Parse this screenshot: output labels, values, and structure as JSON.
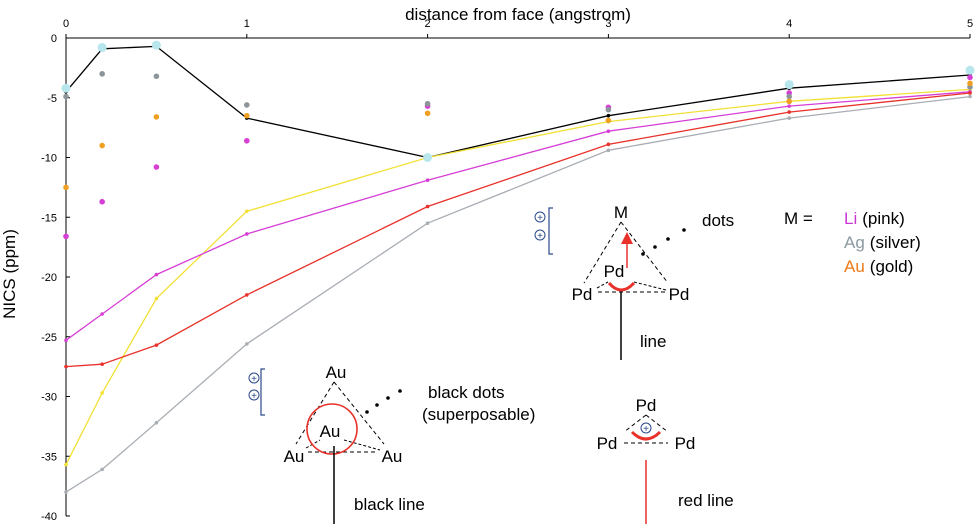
{
  "chart_data": {
    "type": "scatter",
    "xlabel": "distance from face (angstrom)",
    "ylabel": "NICS (ppm)",
    "xlim": [
      0,
      5
    ],
    "ylim": [
      -40,
      0
    ],
    "x_ticks": [
      "0",
      "1",
      "2",
      "3",
      "4",
      "5"
    ],
    "y_ticks": [
      "0",
      "-5",
      "-10",
      "-15",
      "-20",
      "-25",
      "-30",
      "-35",
      "-40"
    ],
    "series": [
      {
        "key": "black_line",
        "style": "line",
        "color": "#000000",
        "points": [
          [
            0,
            -4.5
          ],
          [
            0.2,
            -0.9
          ],
          [
            0.5,
            -0.7
          ],
          [
            1,
            -6.7
          ],
          [
            2,
            -10.0
          ],
          [
            3,
            -6.5
          ],
          [
            4,
            -4.2
          ],
          [
            5,
            -3.1
          ]
        ]
      },
      {
        "key": "yellow_line",
        "style": "line",
        "color": "#f2e034",
        "points": [
          [
            0,
            -35.7
          ],
          [
            0.2,
            -29.7
          ],
          [
            0.5,
            -21.8
          ],
          [
            1,
            -14.5
          ],
          [
            2,
            -10.0
          ],
          [
            3,
            -7.0
          ],
          [
            4,
            -5.3
          ],
          [
            5,
            -4.3
          ]
        ]
      },
      {
        "key": "pink_line",
        "style": "line",
        "color": "#d63fd6",
        "points": [
          [
            0,
            -25.3
          ],
          [
            0.2,
            -23.1
          ],
          [
            0.5,
            -19.8
          ],
          [
            1,
            -16.4
          ],
          [
            2,
            -11.9
          ],
          [
            3,
            -7.8
          ],
          [
            4,
            -5.7
          ],
          [
            5,
            -4.5
          ]
        ]
      },
      {
        "key": "red_line",
        "style": "line",
        "color": "#e8312a",
        "points": [
          [
            0,
            -27.5
          ],
          [
            0.2,
            -27.3
          ],
          [
            0.5,
            -25.7
          ],
          [
            1,
            -21.5
          ],
          [
            2,
            -14.1
          ],
          [
            3,
            -8.9
          ],
          [
            4,
            -6.2
          ],
          [
            5,
            -4.6
          ]
        ]
      },
      {
        "key": "gray_line",
        "style": "line",
        "color": "#a9aeb4",
        "points": [
          [
            0,
            -38.0
          ],
          [
            0.2,
            -36.1
          ],
          [
            0.5,
            -32.2
          ],
          [
            1,
            -25.6
          ],
          [
            2,
            -15.5
          ],
          [
            3,
            -9.4
          ],
          [
            4,
            -6.7
          ],
          [
            5,
            -4.9
          ]
        ]
      },
      {
        "key": "light_blue_dots",
        "style": "dots",
        "color": "#b7e6ec",
        "points": [
          [
            0,
            -4.2
          ],
          [
            0.2,
            -0.8
          ],
          [
            0.5,
            -0.6
          ],
          [
            2,
            -10.0
          ],
          [
            4,
            -3.9
          ],
          [
            5,
            -2.7
          ]
        ]
      },
      {
        "key": "pink_dots",
        "style": "dots",
        "color": "#d63fd6",
        "points": [
          [
            0,
            -16.6
          ],
          [
            0.2,
            -13.7
          ],
          [
            0.5,
            -10.8
          ],
          [
            1,
            -8.6
          ],
          [
            2,
            -5.7
          ],
          [
            3,
            -5.8
          ],
          [
            4,
            -4.6
          ],
          [
            5,
            -3.3
          ]
        ]
      },
      {
        "key": "gray_dots",
        "style": "dots",
        "color": "#8c9599",
        "points": [
          [
            0,
            -4.9
          ],
          [
            0.2,
            -3.0
          ],
          [
            0.5,
            -3.2
          ],
          [
            1,
            -5.6
          ],
          [
            2,
            -5.5
          ],
          [
            3,
            -6.0
          ],
          [
            4,
            -4.9
          ],
          [
            5,
            -4.1
          ]
        ]
      },
      {
        "key": "orange_dots",
        "style": "dots",
        "color": "#f0a020",
        "points": [
          [
            0,
            -12.5
          ],
          [
            0.2,
            -9.0
          ],
          [
            0.5,
            -6.6
          ],
          [
            1,
            -6.5
          ],
          [
            2,
            -6.3
          ],
          [
            3,
            -6.9
          ],
          [
            4,
            -5.3
          ],
          [
            5,
            -3.8
          ]
        ]
      }
    ],
    "annotations": {
      "m_label": "M =",
      "legend_entries": [
        {
          "symbol": "Li",
          "text": "(pink)",
          "color": "#c837d2"
        },
        {
          "symbol": "Ag",
          "text": "(silver)",
          "color": "#8b9aa1"
        },
        {
          "symbol": "Au",
          "text": "(gold)",
          "color": "#ec7a18"
        }
      ],
      "diagram_pd_m": {
        "top": "M",
        "center": "Pd",
        "left": "Pd",
        "right": "Pd",
        "dots": "dots",
        "line": "line"
      },
      "diagram_au": {
        "top": "Au",
        "center": "Au",
        "left": "Au",
        "right": "Au",
        "dots_line1": "black dots",
        "dots_line2": "(superposable)",
        "line": "black line"
      },
      "diagram_pd": {
        "top": "Pd",
        "left": "Pd",
        "right": "Pd",
        "line": "red line"
      },
      "plus_sign": "+"
    }
  }
}
